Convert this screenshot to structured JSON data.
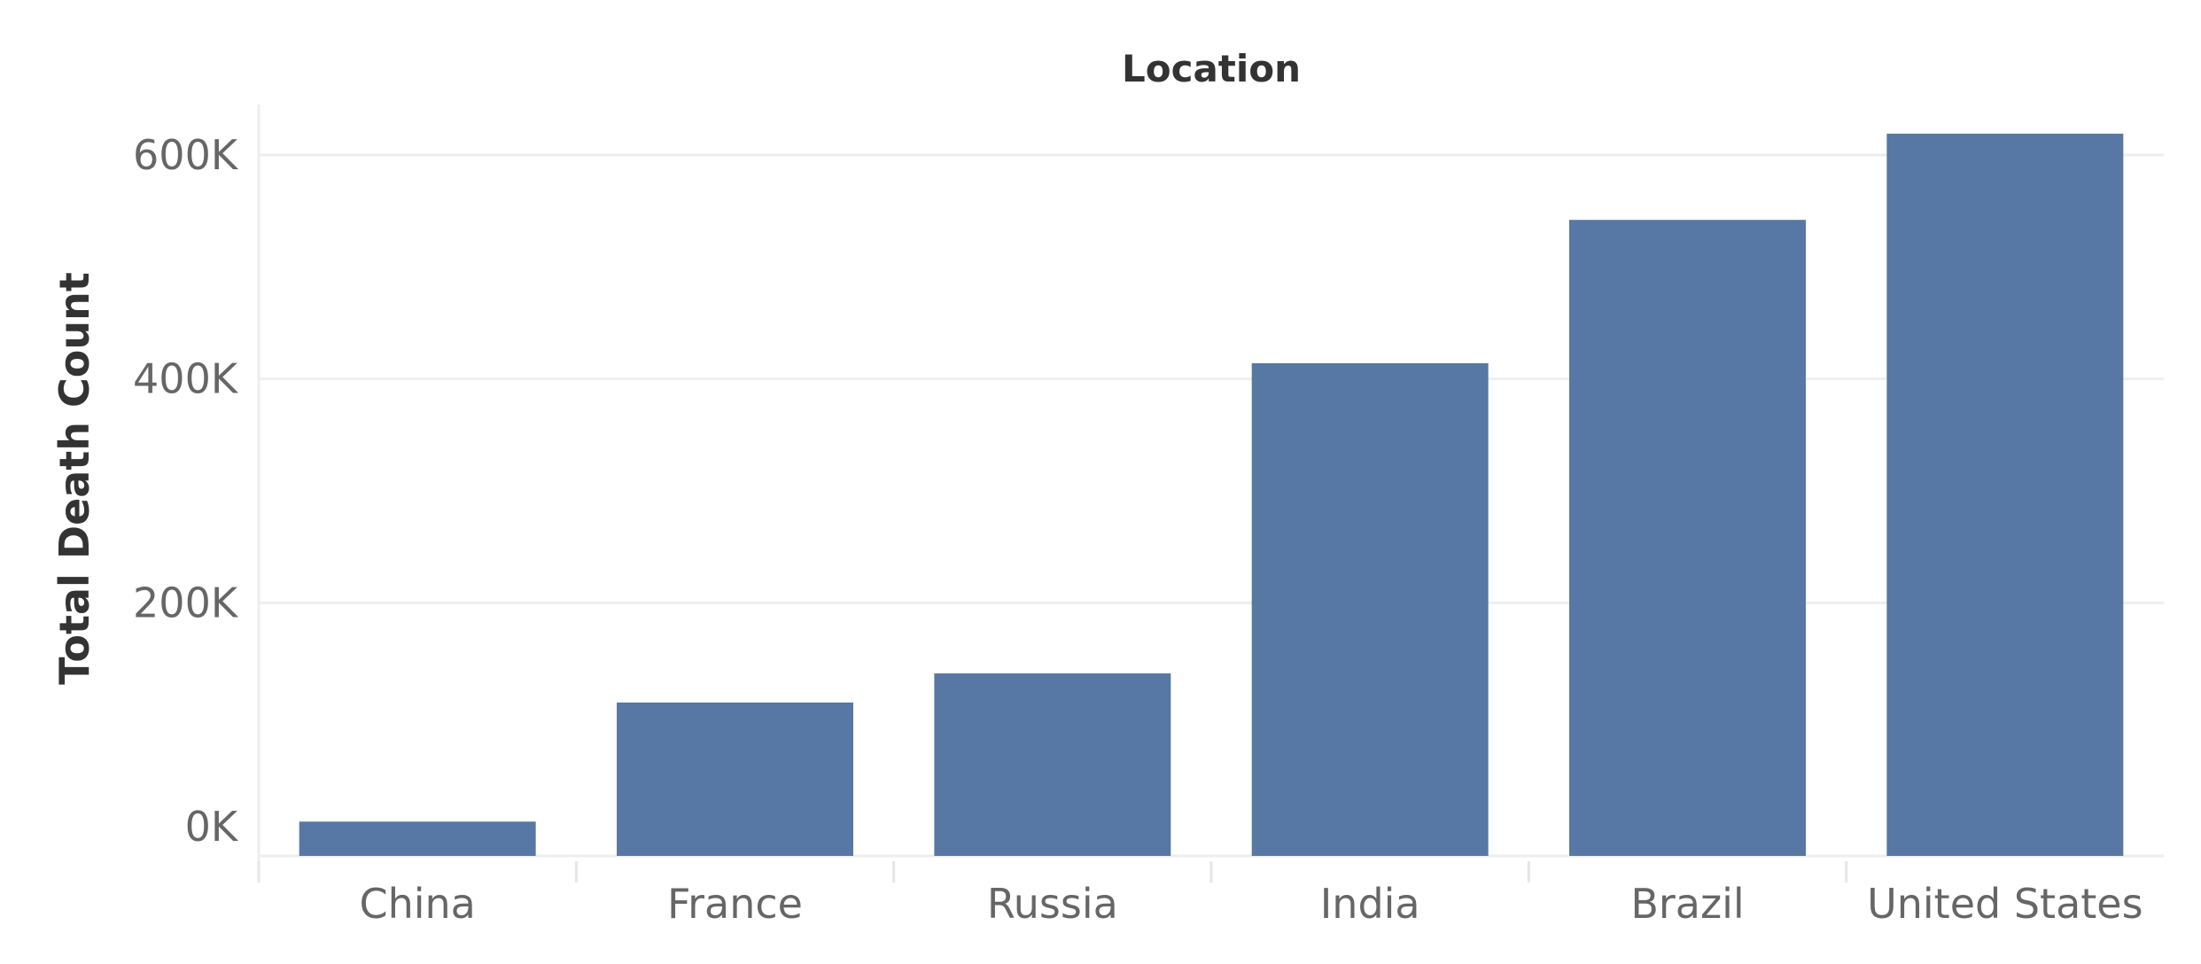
{
  "chart_data": {
    "type": "bar",
    "title": "Location",
    "xlabel": "",
    "ylabel": "Total Death Count",
    "categories": [
      "China",
      "France",
      "Russia",
      "India",
      "Brazil",
      "United States"
    ],
    "values": [
      4636,
      111000,
      137000,
      414000,
      542000,
      619000
    ],
    "ylim": [
      -26000,
      645000
    ],
    "yticks": [
      0,
      200000,
      400000,
      600000
    ],
    "ytick_labels": [
      "0K",
      "200K",
      "400K",
      "600K"
    ],
    "grid": true,
    "bar_color": "#5778a4",
    "legend": "none"
  }
}
